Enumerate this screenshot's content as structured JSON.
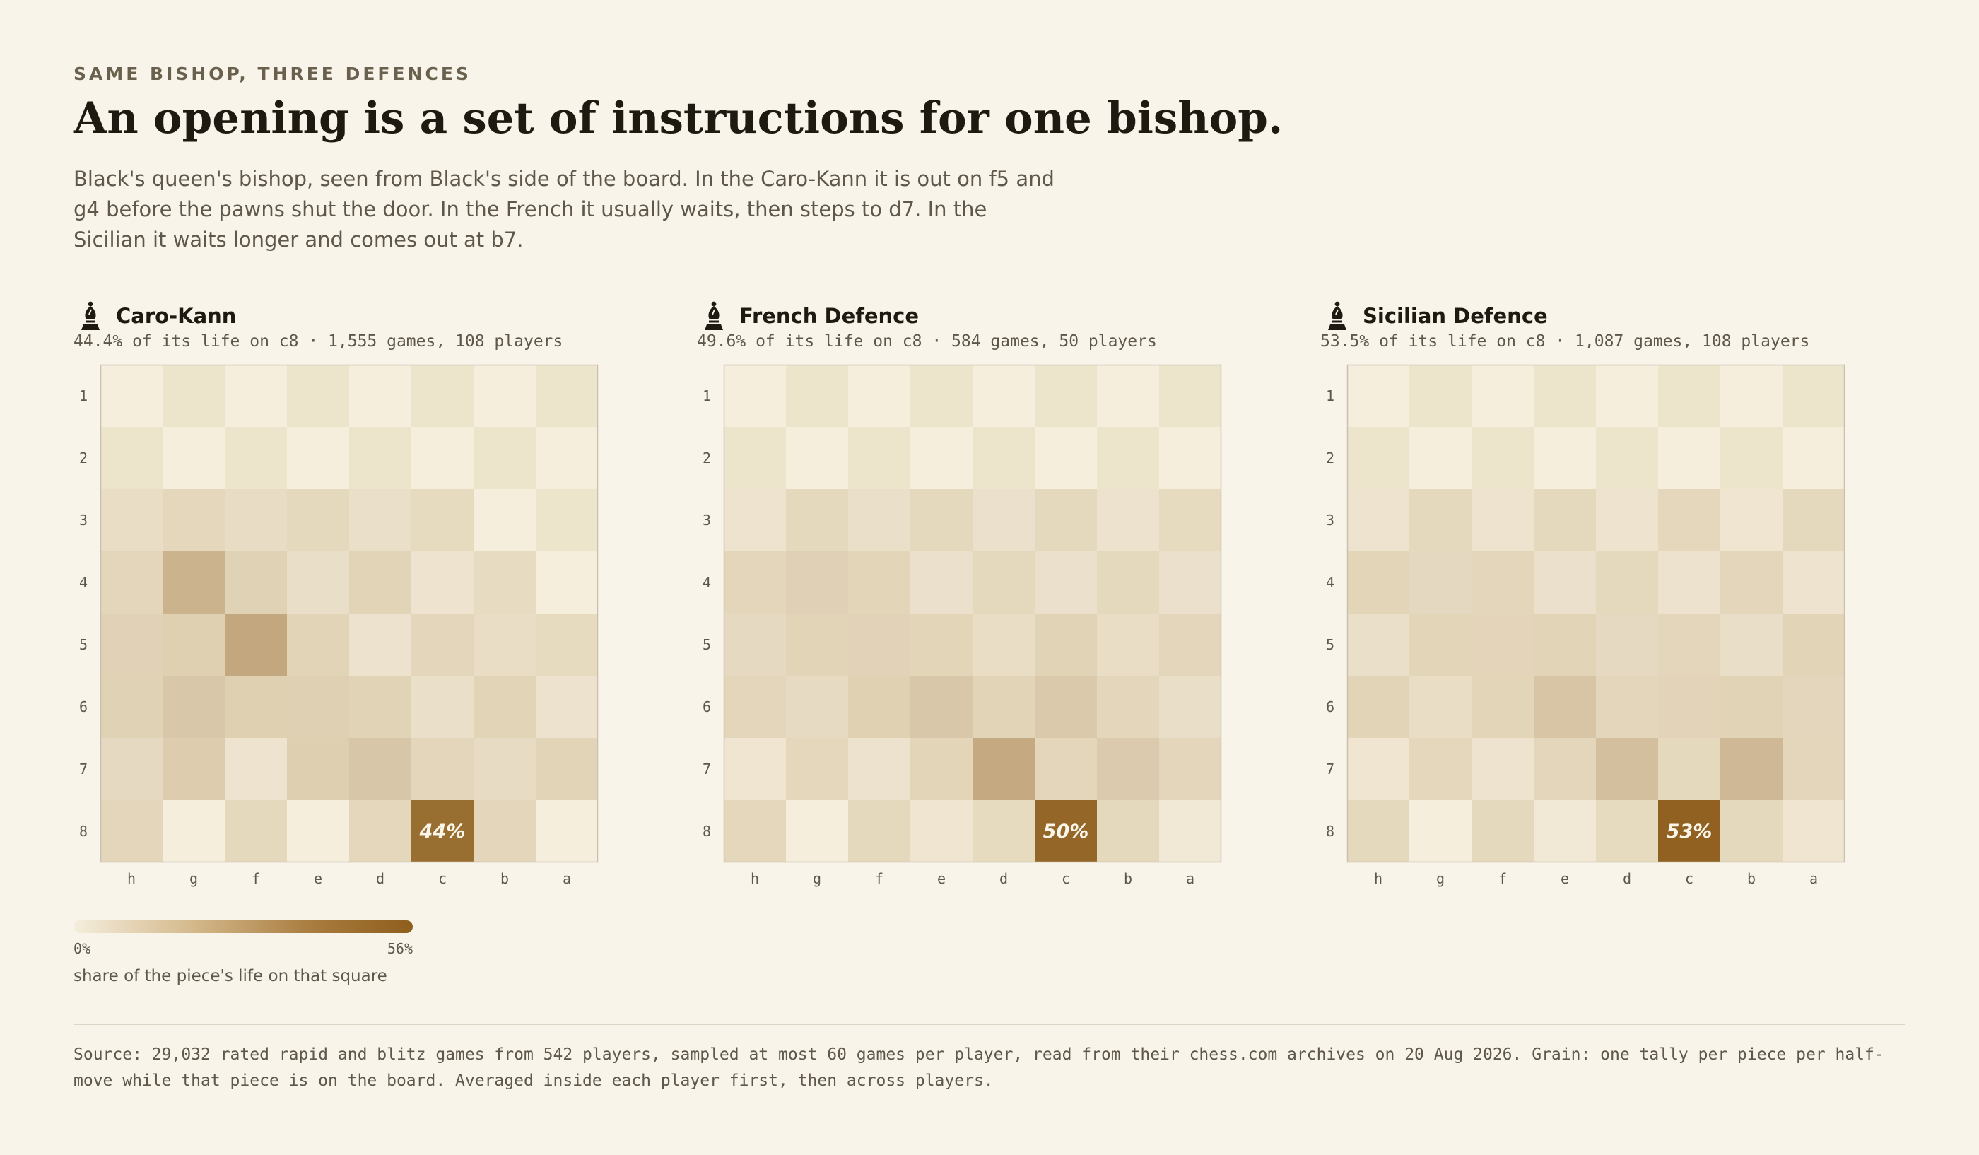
{
  "header": {
    "kicker": "SAME BISHOP, THREE DEFENCES",
    "title": "An opening is a set of instructions for one bishop.",
    "subtitle": "Black's queen's bishop, seen from Black's side of the board. In the Caro-Kann it is out on f5 and g4 before the pawns shut the door. In the French it usually waits, then steps to d7. In the Sicilian it waits longer and comes out at b7."
  },
  "colors": {
    "background": "#f8f4e9",
    "light_square": "#f5eedd",
    "dark_square": "#ede4cc",
    "max_fill": "#8e5e1c",
    "label_on_dark": "#fbf6ea"
  },
  "chart_data": [
    {
      "type": "heatmap",
      "title": "Caro-Kann",
      "icon": "black-bishop-icon",
      "subtitle": "44.4% of its life on c8 · 1,555 games, 108 players",
      "files": [
        "h",
        "g",
        "f",
        "e",
        "d",
        "c",
        "b",
        "a"
      ],
      "ranks": [
        "1",
        "2",
        "3",
        "4",
        "5",
        "6",
        "7",
        "8"
      ],
      "value_unit": "%",
      "scale": [
        0,
        56
      ],
      "values": [
        [
          0,
          0,
          0,
          0,
          0,
          0,
          0,
          0
        ],
        [
          0,
          0,
          0,
          0,
          0,
          0,
          0,
          0
        ],
        [
          0.8,
          0.5,
          0.9,
          0.4,
          0.6,
          0.3,
          0,
          0
        ],
        [
          0.6,
          9.5,
          1,
          0.7,
          0.8,
          0.3,
          0.2,
          0
        ],
        [
          2.2,
          1.3,
          13.2,
          0.8,
          0.4,
          0.6,
          0.8,
          0.3
        ],
        [
          1,
          4.1,
          1.3,
          2.6,
          0.9,
          0.6,
          0.8,
          0.4
        ],
        [
          1.2,
          1.6,
          0.3,
          1.4,
          4.3,
          0.6,
          1,
          0.8
        ],
        [
          0.6,
          0,
          0.4,
          0,
          0.5,
          44.4,
          0.6,
          0
        ]
      ],
      "annotation": "44%"
    },
    {
      "type": "heatmap",
      "title": "French Defence",
      "icon": "black-bishop-icon",
      "subtitle": "49.6% of its life on c8 · 584 games, 50 players",
      "files": [
        "h",
        "g",
        "f",
        "e",
        "d",
        "c",
        "b",
        "a"
      ],
      "ranks": [
        "1",
        "2",
        "3",
        "4",
        "5",
        "6",
        "7",
        "8"
      ],
      "value_unit": "%",
      "scale": [
        0,
        56
      ],
      "values": [
        [
          0,
          0,
          0,
          0,
          0,
          0,
          0,
          0
        ],
        [
          0,
          0,
          0,
          0,
          0,
          0,
          0,
          0
        ],
        [
          0.3,
          0.4,
          0.6,
          0.4,
          0.5,
          0.4,
          0.4,
          0.3
        ],
        [
          0.6,
          2.3,
          0.7,
          0.5,
          0.4,
          0.5,
          0.4,
          0.5
        ],
        [
          1.2,
          0.8,
          2.1,
          0.7,
          0.8,
          0.9,
          0.8,
          0.6
        ],
        [
          0.6,
          1.1,
          1.1,
          4.1,
          0.8,
          3.6,
          0.6,
          0.7
        ],
        [
          0.2,
          0.5,
          0.4,
          0.7,
          12.8,
          0.6,
          3.5,
          0.6
        ],
        [
          0.5,
          0,
          0.4,
          0.2,
          0.3,
          49.6,
          0.4,
          0.1
        ]
      ],
      "annotation": "50%"
    },
    {
      "type": "heatmap",
      "title": "Sicilian Defence",
      "icon": "black-bishop-icon",
      "subtitle": "53.5% of its life on c8 · 1,087 games, 108 players",
      "files": [
        "h",
        "g",
        "f",
        "e",
        "d",
        "c",
        "b",
        "a"
      ],
      "ranks": [
        "1",
        "2",
        "3",
        "4",
        "5",
        "6",
        "7",
        "8"
      ],
      "value_unit": "%",
      "scale": [
        0,
        56
      ],
      "values": [
        [
          0,
          0,
          0,
          0,
          0,
          0,
          0,
          0
        ],
        [
          0,
          0,
          0,
          0,
          0,
          0,
          0,
          0
        ],
        [
          0.3,
          0.4,
          0.3,
          0.4,
          0.3,
          0.5,
          0.2,
          0.4
        ],
        [
          0.7,
          1.3,
          0.6,
          0.5,
          0.4,
          0.4,
          0.6,
          0.3
        ],
        [
          0.6,
          0.7,
          1.8,
          0.8,
          1.2,
          0.6,
          0.7,
          0.8
        ],
        [
          0.8,
          0.8,
          0.7,
          4.6,
          0.6,
          2,
          0.9,
          1.5
        ],
        [
          0.2,
          0.5,
          0.3,
          0.6,
          6.2,
          0.4,
          7.8,
          0.6
        ],
        [
          0.4,
          0,
          0.4,
          0.1,
          0.3,
          53.5,
          0.4,
          0.2
        ]
      ],
      "annotation": "53%"
    }
  ],
  "legend": {
    "min_label": "0%",
    "max_label": "56%",
    "caption": "share of the piece's life on that square"
  },
  "footer": {
    "source": "Source: 29,032 rated rapid and blitz games from 542 players, sampled at most 60 games per player, read from their chess.com archives on 20 Aug 2026. Grain: one tally per piece per half-move while that piece is on the board. Averaged inside each player first, then across players."
  }
}
